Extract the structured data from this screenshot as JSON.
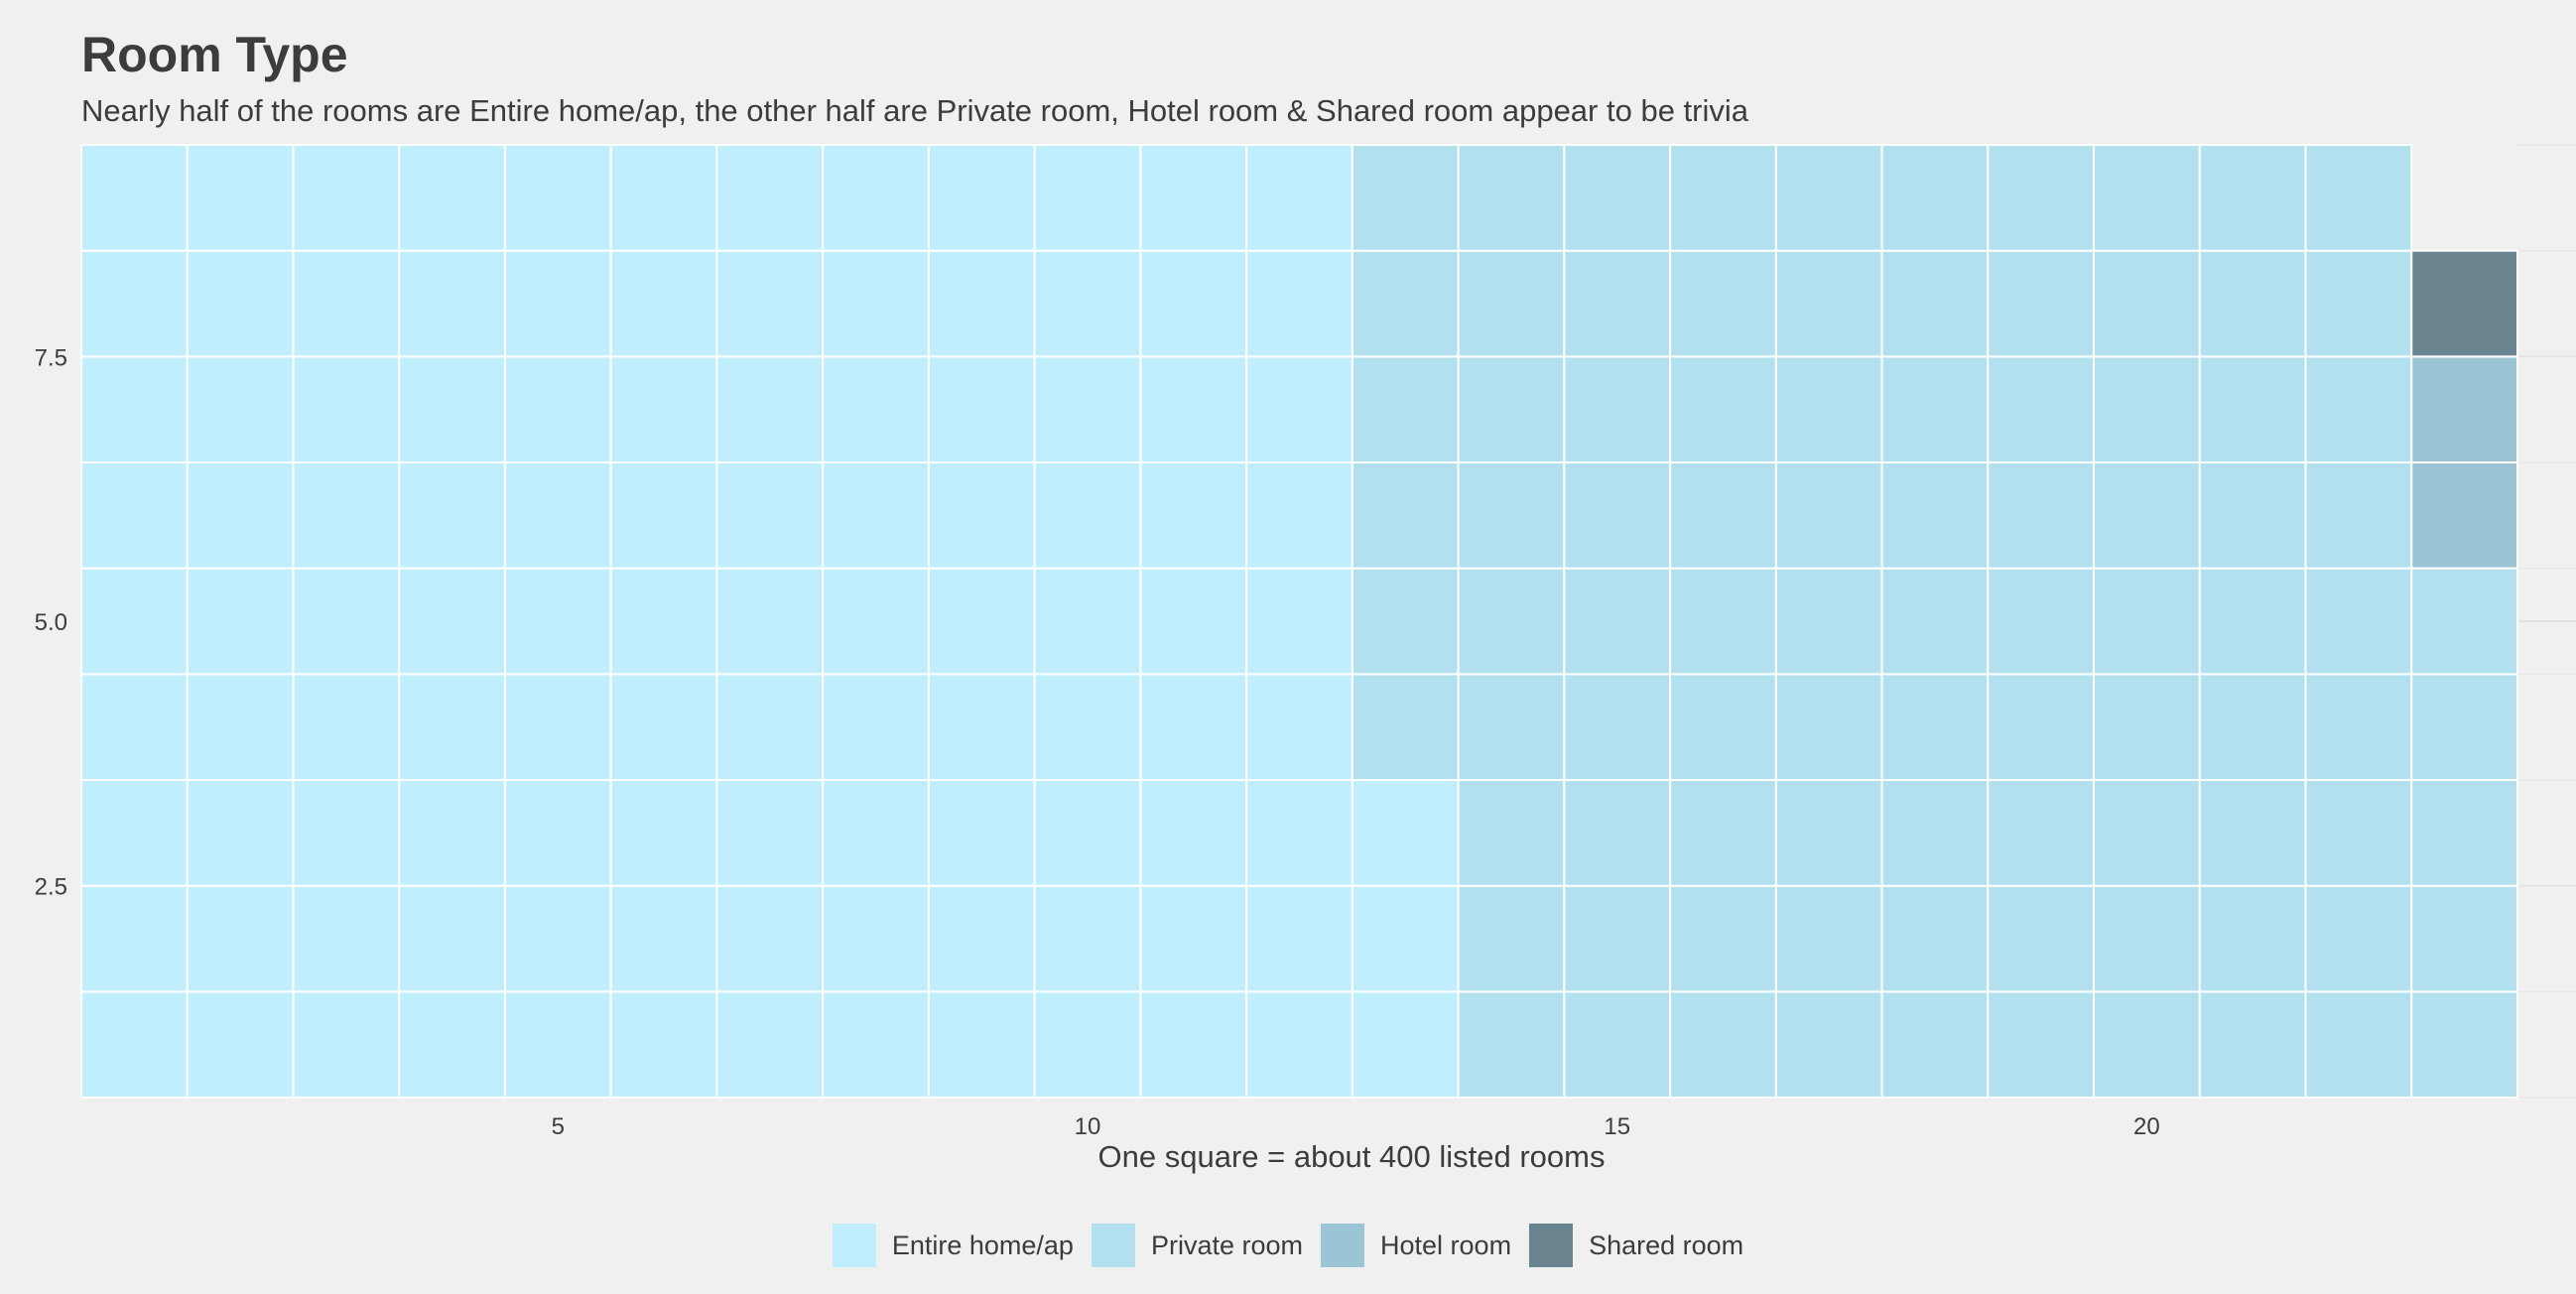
{
  "chart_data": {
    "type": "waffle",
    "title": "Room Type",
    "subtitle": "Nearly half of the rooms are Entire home/ap, the other half are Private room, Hotel room & Shared room appear to be trivia",
    "xlabel": "One square = about 400 listed rooms",
    "ylabel": "",
    "grid": true,
    "legend_position": "bottom",
    "xlim": [
      0.5,
      23.5
    ],
    "ylim": [
      0.5,
      9.5
    ],
    "rows": 9,
    "x_ticks": [
      "5",
      "10",
      "15",
      "20"
    ],
    "y_ticks": [
      "2.5",
      "5.0",
      "7.5"
    ],
    "series": [
      {
        "name": "Entire home/ap",
        "squares": 111,
        "color": "#c1eefc"
      },
      {
        "name": "Private room",
        "squares": 92,
        "color": "#b2e0ee"
      },
      {
        "name": "Hotel room",
        "squares": 2,
        "color": "#9bc5d4"
      },
      {
        "name": "Shared room",
        "squares": 1,
        "color": "#6a848f"
      }
    ]
  }
}
